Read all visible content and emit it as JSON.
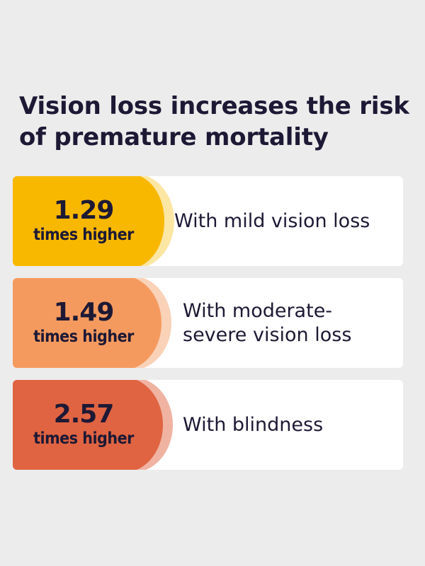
{
  "title": "Vision loss increases the risk of premature mortality",
  "rows": [
    {
      "value": "1.29",
      "unit": "times higher",
      "description": "With mild vision loss",
      "color": "#f8b800",
      "ring_color": "#fbe6a3"
    },
    {
      "value": "1.49",
      "unit": "times higher",
      "description": "With moderate-\nsevere vision loss",
      "color": "#f59a5e",
      "ring_color": "#f9d2b8"
    },
    {
      "value": "2.57",
      "unit": "times higher",
      "description": "With blindness",
      "color": "#e06442",
      "ring_color": "#f0b3a2"
    }
  ]
}
